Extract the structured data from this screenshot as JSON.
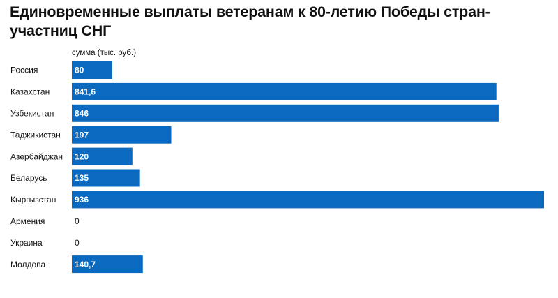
{
  "chart_data": {
    "type": "bar",
    "orientation": "horizontal",
    "title": "Единовременные выплаты ветеранам к 80-летию Победы стран-участниц СНГ",
    "value_header": "сумма (тыс. руб.)",
    "categories": [
      "Россия",
      "Казахстан",
      "Узбекистан",
      "Таджикистан",
      "Азербайджан",
      "Беларусь",
      "Кыргызстан",
      "Армения",
      "Украина",
      "Молдова"
    ],
    "values": [
      80,
      841.6,
      846,
      197,
      120,
      135,
      936,
      0,
      0,
      140.7
    ],
    "value_labels": [
      "80",
      "841,6",
      "846",
      "197",
      "120",
      "135",
      "936",
      "0",
      "0",
      "140,7"
    ],
    "xlim": [
      0,
      936
    ],
    "grid": false,
    "legend": "none",
    "colors": {
      "bar": "#0b6abf",
      "bar_label": "#ffffff",
      "zero_label": "#111111",
      "text": "#111111"
    }
  }
}
